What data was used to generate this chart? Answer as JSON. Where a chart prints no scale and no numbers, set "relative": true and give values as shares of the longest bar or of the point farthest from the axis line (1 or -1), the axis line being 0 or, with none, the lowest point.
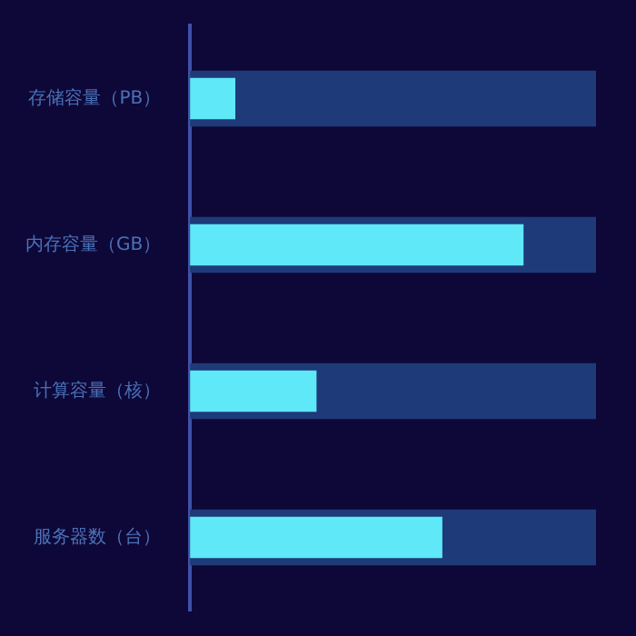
{
  "chart_data": {
    "type": "bar",
    "orientation": "horizontal",
    "relative": true,
    "categories": [
      "存储容量（PB）",
      "内存容量（GB）",
      "计算容量（核）",
      "服务器数（台）"
    ],
    "series": [
      {
        "color": "#1e3a78",
        "values": [
          1,
          1,
          1,
          1
        ]
      },
      {
        "color": "#5ee8f8",
        "values": [
          0.11,
          0.82,
          0.31,
          0.62
        ]
      }
    ],
    "legend": false
  }
}
